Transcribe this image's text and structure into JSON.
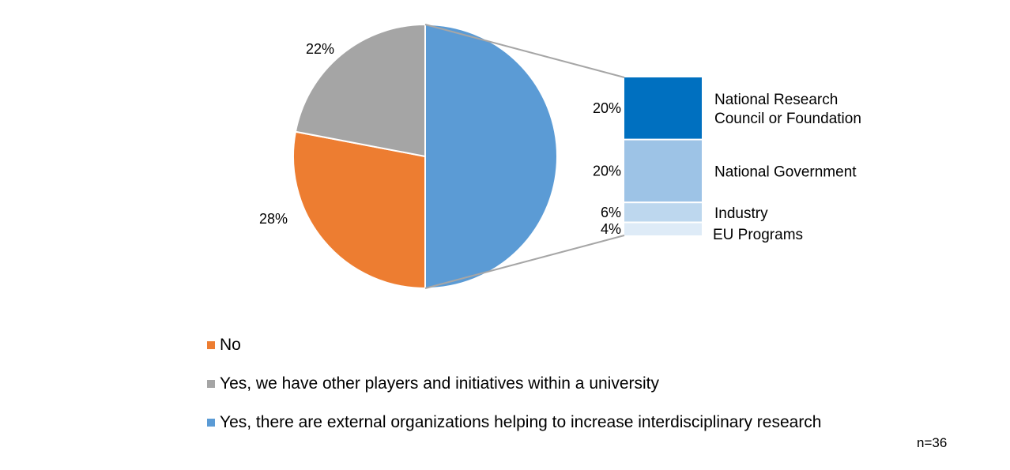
{
  "chart_data": {
    "type": "bar-of-pie",
    "pie": {
      "slices": [
        {
          "name": "Yes, there are external organizations helping to increase interdisciplinary research",
          "value": 50,
          "color": "#5B9BD5"
        },
        {
          "name": "No",
          "value": 28,
          "label": "28%",
          "color": "#ED7D31"
        },
        {
          "name": "Yes, we have other players and initiatives within a university",
          "value": 22,
          "label": "22%",
          "color": "#A5A5A5"
        }
      ]
    },
    "breakdown": {
      "parent": "Yes, there are external organizations helping to increase interdisciplinary research",
      "segments": [
        {
          "name": "National Research Council or Foundation",
          "name_lines": [
            "National Research",
            "Council or Foundation"
          ],
          "value": 20,
          "label": "20%",
          "color": "#0070C0"
        },
        {
          "name": "National Government",
          "name_lines": [
            "National Government"
          ],
          "value": 20,
          "label": "20%",
          "color": "#9DC3E6"
        },
        {
          "name": "Industry",
          "name_lines": [
            "Industry"
          ],
          "value": 6,
          "label": "6%",
          "color": "#BDD7EE"
        },
        {
          "name": "EU Programs",
          "name_lines": [
            "EU Programs"
          ],
          "value": 4,
          "label": "4%",
          "color": "#DEEBF7"
        }
      ]
    },
    "legend": {
      "placement": "bottom",
      "items": [
        {
          "label": "No",
          "color": "#ED7D31"
        },
        {
          "label": "Yes, we have other players and initiatives within a university",
          "color": "#A5A5A5"
        },
        {
          "label": "Yes, there are external organizations helping to increase interdisciplinary research",
          "color": "#5B9BD5"
        }
      ]
    },
    "note": "n=36"
  }
}
